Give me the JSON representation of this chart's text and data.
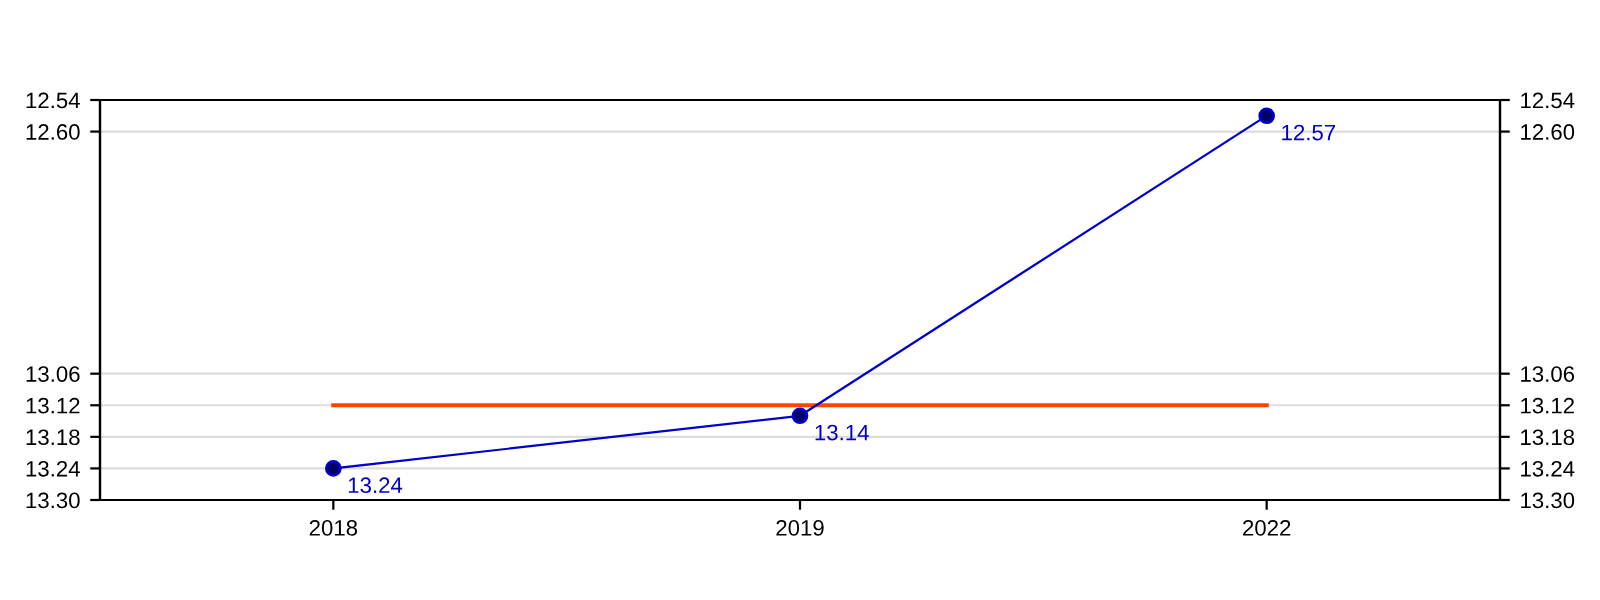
{
  "chart_data": {
    "type": "line",
    "categories": [
      "2018",
      "2019",
      "2022"
    ],
    "series": [
      {
        "color": "#0000cc",
        "values": [
          13.24,
          13.14,
          12.57
        ]
      }
    ],
    "marker": "circle",
    "line_style": "solid",
    "data_labels": true,
    "ylim": [
      13.3,
      12.54
    ],
    "yticks": [
      12.54,
      {
        "value": 12.6,
        "label": "12.60"
      },
      13.06,
      13.12,
      13.18,
      13.24,
      {
        "value": 13.3,
        "label": "13.30"
      }
    ],
    "y2lim": [
      13.3,
      12.54
    ],
    "y2ticks": [
      12.54,
      {
        "value": 12.6,
        "label": "12.60"
      },
      13.06,
      13.12,
      13.18,
      13.24,
      {
        "value": 13.3,
        "label": "13.30"
      }
    ],
    "ref_lines": [
      {
        "axis": "y",
        "value": 13.12,
        "color": "#ff4400"
      }
    ],
    "grid": "y",
    "legend": false
  }
}
